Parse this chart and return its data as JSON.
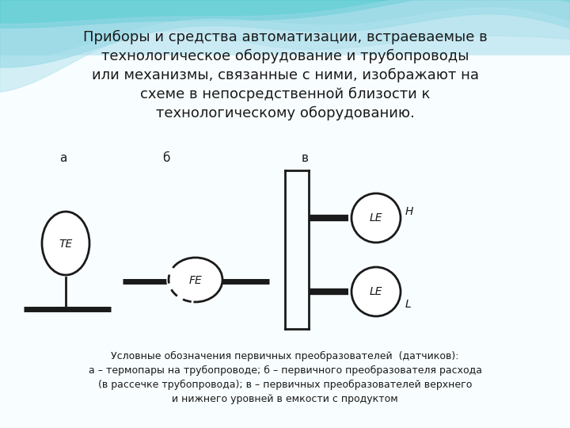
{
  "title_text": "Приборы и средства автоматизации, встраеваемые в\nтехнологическое оборудование и трубопроводы\nили механизмы, связанные с ними, изображают на\nсхеме в непосредственной близости к\nтехнологическому оборудованию.",
  "label_a": "а",
  "label_b": "б",
  "label_c": "в",
  "te_label": "TE",
  "fe_label": "FE",
  "le_label": "LE",
  "h_label": "H",
  "l_label": "L",
  "caption_line1": "Условные обозначения первичных преобразователей  (датчиков):",
  "caption_line2": "а – термопары на трубопроводе; б – первичного преобразователя расхода",
  "caption_line3": "(в рассечке трубопровода); в – первичных преобразователей верхнего",
  "caption_line4": "и нижнего уровней в емкости с продуктом",
  "bg_light_blue": "#c5e8f0",
  "bg_teal1": "#5ec8cc",
  "bg_teal2": "#8dd8e0",
  "bg_white": "#f5fbfd",
  "text_color": "#1a1a1a",
  "diagram_color": "#1a1a1a",
  "white": "#ffffff"
}
